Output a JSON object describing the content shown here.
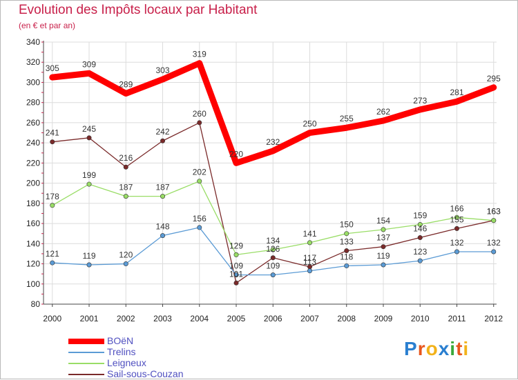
{
  "header": {
    "title": "Evolution des Impôts locaux par Habitant",
    "subtitle": "(en € et par an)"
  },
  "brand": {
    "text": "Proxiti",
    "letters": [
      "P",
      "r",
      "o",
      "x",
      "i",
      "t",
      "i"
    ],
    "colors": [
      "#2a7fd0",
      "#e8571e",
      "#f2b21a",
      "#2a7fd0",
      "#3aa83a",
      "#e8571e",
      "#f2b21a"
    ]
  },
  "chart_data": {
    "type": "line",
    "title": "Evolution des Impôts locaux par Habitant",
    "subtitle": "(en € et par an)",
    "xlabel": "",
    "ylabel": "",
    "x": [
      2000,
      2001,
      2002,
      2003,
      2004,
      2005,
      2006,
      2007,
      2008,
      2009,
      2010,
      2011,
      2012
    ],
    "ylim": [
      80,
      340
    ],
    "yticks": [
      80,
      100,
      120,
      140,
      160,
      180,
      200,
      220,
      240,
      260,
      280,
      300,
      320,
      340
    ],
    "grid": true,
    "legend_position": "bottom-left",
    "series": [
      {
        "name": "BOëN",
        "color": "#ff0000",
        "width": 9,
        "marker": false,
        "values": [
          305,
          309,
          289,
          303,
          319,
          220,
          232,
          250,
          255,
          262,
          273,
          281,
          295
        ]
      },
      {
        "name": "Trelins",
        "color": "#5b9bd5",
        "width": 1.3,
        "marker": true,
        "values": [
          121,
          119,
          120,
          148,
          156,
          109,
          109,
          113,
          118,
          119,
          123,
          132,
          132
        ]
      },
      {
        "name": "Leigneux",
        "color": "#99dd66",
        "width": 1.3,
        "marker": true,
        "values": [
          178,
          199,
          187,
          187,
          202,
          129,
          134,
          141,
          150,
          154,
          159,
          166,
          163
        ]
      },
      {
        "name": "Sail-sous-Couzan",
        "color": "#7a2a2a",
        "width": 1.3,
        "marker": true,
        "values": [
          241,
          245,
          216,
          242,
          260,
          101,
          126,
          117,
          133,
          137,
          146,
          155,
          163
        ]
      }
    ]
  }
}
